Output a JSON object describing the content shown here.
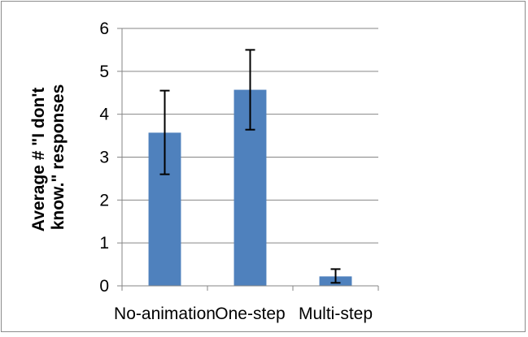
{
  "chart_data": {
    "type": "bar",
    "title": "",
    "xlabel": "",
    "ylabel_lines": [
      "Average # \"I don't",
      "know.\" responses"
    ],
    "categories": [
      "No-animation",
      "One-step",
      "Multi-step"
    ],
    "values": [
      3.57,
      4.57,
      0.22
    ],
    "error_low": [
      2.6,
      3.64,
      0.07
    ],
    "error_high": [
      4.55,
      5.5,
      0.39
    ],
    "ylim": [
      0,
      6
    ],
    "yticks": [
      "0",
      "1",
      "2",
      "3",
      "4",
      "5",
      "6"
    ],
    "grid": true,
    "legend": "none",
    "colors": {
      "bar": "#4f81bd",
      "grid": "#868686",
      "axis": "#868686",
      "error": "#000000"
    }
  }
}
